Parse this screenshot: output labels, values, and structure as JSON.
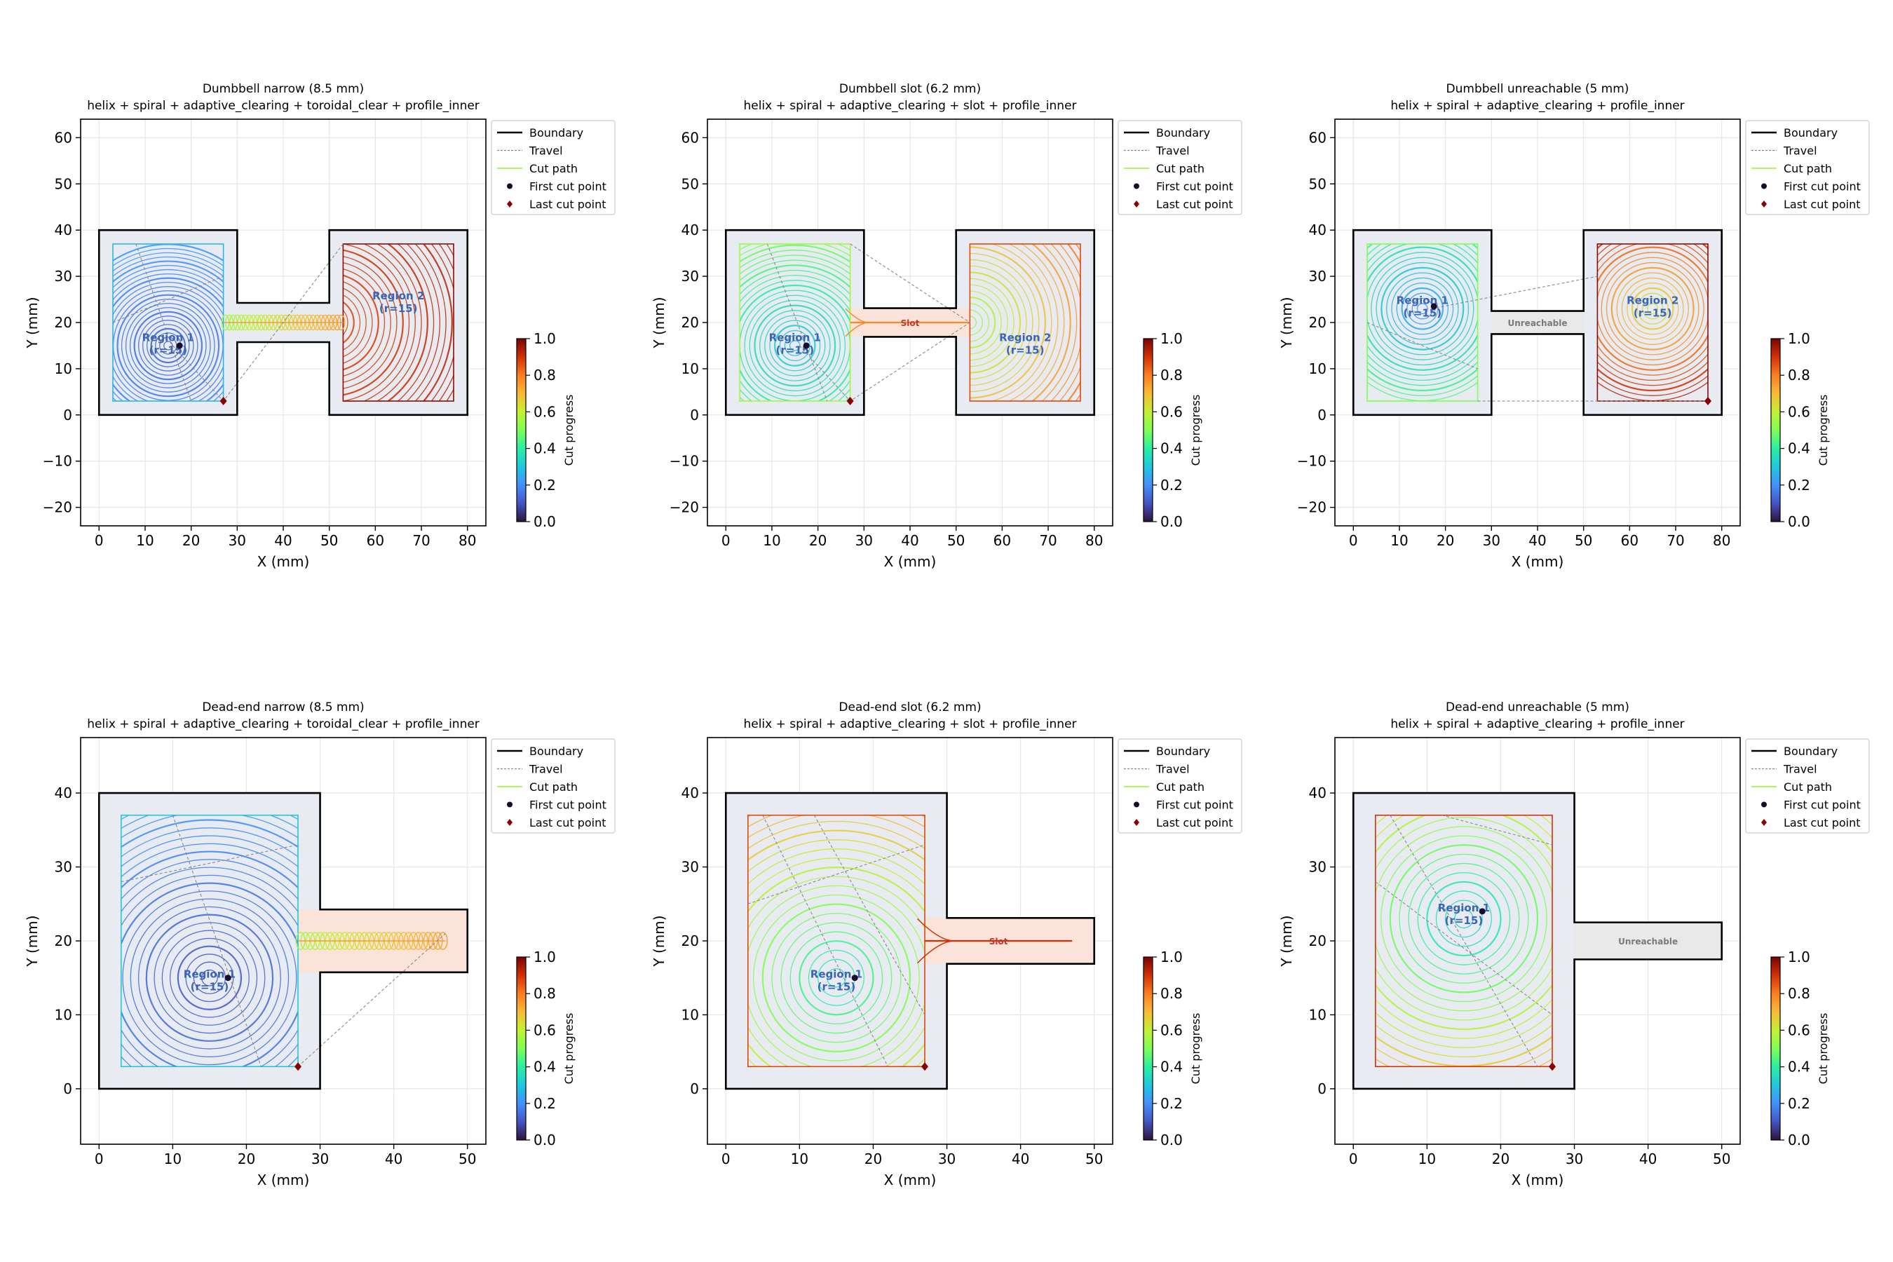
{
  "figure": {
    "colorbar_label": "Cut progress",
    "colormap": "turbo"
  },
  "legend": [
    "Boundary",
    "Travel",
    "Cut path",
    "First cut point",
    "Last cut point"
  ],
  "colors": {
    "boundary": "#000000",
    "travel": "#888888",
    "region_fill": "#e8ecf2",
    "region_label": "#3a64b8",
    "first_point": "#1a0b2e",
    "last_point": "#8b0000",
    "slot_fill": "#fbe3da",
    "unreachable_fill": "#e9e9e9",
    "unreachable_label": "#7a7a7a"
  },
  "chart_data": [
    {
      "type": "line",
      "title": "Dumbbell narrow (8.5 mm)",
      "subtitle": "helix + spiral + adaptive_clearing + toroidal_clear + profile_inner",
      "xlabel": "X (mm)",
      "ylabel": "Y (mm)",
      "xlim": [
        -4,
        84
      ],
      "ylim": [
        -24,
        64
      ],
      "xticks": [
        0,
        10,
        20,
        30,
        40,
        50,
        60,
        70,
        80
      ],
      "yticks": [
        -20,
        -10,
        0,
        10,
        20,
        30,
        40,
        50,
        60
      ],
      "grid": true,
      "legend_position": "outside-right",
      "boundary": [
        [
          0,
          0
        ],
        [
          30,
          0
        ],
        [
          30,
          15.75
        ],
        [
          50,
          15.75
        ],
        [
          50,
          0
        ],
        [
          80,
          0
        ],
        [
          80,
          40
        ],
        [
          50,
          40
        ],
        [
          50,
          24.25
        ],
        [
          30,
          24.25
        ],
        [
          30,
          40
        ],
        [
          0,
          40
        ]
      ],
      "regions": [
        {
          "label": "Region 1",
          "sublabel": "(r=15)",
          "x0": 3,
          "y0": 3,
          "x1": 27,
          "y1": 37,
          "cx": 15,
          "cy": 15,
          "rmax": 22,
          "n": 24,
          "p0": 0.12,
          "p1": 0.22,
          "label_at": [
            15,
            16
          ]
        },
        {
          "label": "Region 2",
          "sublabel": "(r=15)",
          "x0": 53,
          "y0": 3,
          "x1": 77,
          "y1": 37,
          "cx": 50,
          "cy": 20,
          "rmax": 32,
          "n": 24,
          "p0": 0.85,
          "p1": 0.93,
          "label_at": [
            65,
            25
          ]
        }
      ],
      "corridor": {
        "kind": "narrow",
        "x0": 27,
        "x1": 53,
        "y": 20,
        "h": 3.2,
        "p": 0.65
      },
      "travel": [
        [
          [
            16,
            15
          ],
          [
            27,
            3
          ],
          [
            53,
            37
          ]
        ],
        [
          [
            8,
            37
          ],
          [
            20,
            3
          ]
        ],
        [
          [
            3,
            20
          ],
          [
            27,
            30
          ]
        ]
      ],
      "first_point": [
        17.5,
        15
      ],
      "last_point": [
        27,
        3
      ]
    },
    {
      "type": "line",
      "title": "Dumbbell slot (6.2 mm)",
      "subtitle": "helix + spiral + adaptive_clearing + slot + profile_inner",
      "xlabel": "X (mm)",
      "ylabel": "Y (mm)",
      "xlim": [
        -4,
        84
      ],
      "ylim": [
        -24,
        64
      ],
      "xticks": [
        0,
        10,
        20,
        30,
        40,
        50,
        60,
        70,
        80
      ],
      "yticks": [
        -20,
        -10,
        0,
        10,
        20,
        30,
        40,
        50,
        60
      ],
      "grid": true,
      "legend_position": "outside-right",
      "boundary": [
        [
          0,
          0
        ],
        [
          30,
          0
        ],
        [
          30,
          16.9
        ],
        [
          50,
          16.9
        ],
        [
          50,
          0
        ],
        [
          80,
          0
        ],
        [
          80,
          40
        ],
        [
          50,
          40
        ],
        [
          50,
          23.1
        ],
        [
          30,
          23.1
        ],
        [
          30,
          40
        ],
        [
          0,
          40
        ]
      ],
      "regions": [
        {
          "label": "Region 1",
          "sublabel": "(r=15)",
          "x0": 3,
          "y0": 3,
          "x1": 27,
          "y1": 37,
          "cx": 15,
          "cy": 15,
          "rmax": 24,
          "n": 22,
          "p0": 0.28,
          "p1": 0.5,
          "label_at": [
            15,
            16
          ]
        },
        {
          "label": "Region 2",
          "sublabel": "(r=15)",
          "x0": 53,
          "y0": 3,
          "x1": 77,
          "y1": 37,
          "cx": 53,
          "cy": 20,
          "rmax": 30,
          "n": 22,
          "p0": 0.52,
          "p1": 0.82,
          "label_at": [
            65,
            16
          ]
        }
      ],
      "corridor": {
        "kind": "slot",
        "label": "Slot",
        "x0": 27,
        "x1": 53,
        "y": 20,
        "h": 6.2,
        "p": 0.78
      },
      "travel": [
        [
          [
            16,
            15
          ],
          [
            27,
            3
          ],
          [
            53,
            20
          ]
        ],
        [
          [
            27,
            37
          ],
          [
            53,
            20
          ]
        ],
        [
          [
            9,
            37
          ],
          [
            22,
            3
          ]
        ]
      ],
      "first_point": [
        17.5,
        15
      ],
      "last_point": [
        27,
        3
      ]
    },
    {
      "type": "line",
      "title": "Dumbbell unreachable (5 mm)",
      "subtitle": "helix + spiral + adaptive_clearing + profile_inner",
      "xlabel": "X (mm)",
      "ylabel": "Y (mm)",
      "xlim": [
        -4,
        84
      ],
      "ylim": [
        -24,
        64
      ],
      "xticks": [
        0,
        10,
        20,
        30,
        40,
        50,
        60,
        70,
        80
      ],
      "yticks": [
        -20,
        -10,
        0,
        10,
        20,
        30,
        40,
        50,
        60
      ],
      "grid": true,
      "legend_position": "outside-right",
      "boundary": [
        [
          0,
          0
        ],
        [
          30,
          0
        ],
        [
          30,
          17.5
        ],
        [
          50,
          17.5
        ],
        [
          50,
          0
        ],
        [
          80,
          0
        ],
        [
          80,
          40
        ],
        [
          50,
          40
        ],
        [
          50,
          22.5
        ],
        [
          30,
          22.5
        ],
        [
          30,
          40
        ],
        [
          0,
          40
        ]
      ],
      "regions": [
        {
          "label": "Region 1",
          "sublabel": "(r=15)",
          "x0": 3,
          "y0": 3,
          "x1": 27,
          "y1": 37,
          "cx": 15,
          "cy": 23,
          "rmax": 20,
          "n": 18,
          "p0": 0.2,
          "p1": 0.45,
          "label_at": [
            15,
            24
          ]
        },
        {
          "label": "Region 2",
          "sublabel": "(r=15)",
          "x0": 53,
          "y0": 3,
          "x1": 77,
          "y1": 37,
          "cx": 65,
          "cy": 23,
          "rmax": 20,
          "n": 18,
          "p0": 0.6,
          "p1": 0.93,
          "label_at": [
            65,
            24
          ]
        }
      ],
      "corridor": {
        "kind": "unreachable",
        "label": "Unreachable",
        "x0": 30,
        "x1": 50,
        "y": 20,
        "h": 5
      },
      "travel": [
        [
          [
            27,
            3
          ],
          [
            77,
            3
          ]
        ],
        [
          [
            17,
            23
          ],
          [
            53,
            30
          ]
        ],
        [
          [
            3,
            20
          ],
          [
            27,
            10
          ]
        ]
      ],
      "first_point": [
        17.5,
        23.5
      ],
      "last_point": [
        77,
        3
      ]
    },
    {
      "type": "line",
      "title": "Dead-end narrow (8.5 mm)",
      "subtitle": "helix + spiral + adaptive_clearing + toroidal_clear + profile_inner",
      "xlabel": "X (mm)",
      "ylabel": "Y (mm)",
      "xlim": [
        -2.5,
        52.5
      ],
      "ylim": [
        -7.5,
        47.5
      ],
      "xticks": [
        0,
        10,
        20,
        30,
        40,
        50
      ],
      "yticks": [
        0,
        10,
        20,
        30,
        40
      ],
      "grid": true,
      "legend_position": "outside-right",
      "boundary": [
        [
          0,
          0
        ],
        [
          30,
          0
        ],
        [
          30,
          15.75
        ],
        [
          50,
          15.75
        ],
        [
          50,
          24.25
        ],
        [
          30,
          24.25
        ],
        [
          30,
          40
        ],
        [
          0,
          40
        ]
      ],
      "regions": [
        {
          "label": "Region 1",
          "sublabel": "(r=15)",
          "x0": 3,
          "y0": 3,
          "x1": 27,
          "y1": 37,
          "cx": 15,
          "cy": 15,
          "rmax": 30,
          "n": 28,
          "p0": 0.1,
          "p1": 0.25,
          "label_at": [
            15,
            15
          ]
        }
      ],
      "corridor": {
        "kind": "narrow",
        "x0": 27,
        "x1": 47,
        "y": 20,
        "h": 2.3,
        "p": 0.65,
        "dead_end": true
      },
      "travel": [
        [
          [
            27,
            3
          ],
          [
            47,
            21
          ]
        ],
        [
          [
            3,
            28
          ],
          [
            27,
            33
          ]
        ],
        [
          [
            10,
            37
          ],
          [
            22,
            3
          ]
        ]
      ],
      "first_point": [
        17.5,
        15
      ],
      "last_point": [
        27,
        3
      ]
    },
    {
      "type": "line",
      "title": "Dead-end slot (6.2 mm)",
      "subtitle": "helix + spiral + adaptive_clearing + slot + profile_inner",
      "xlabel": "X (mm)",
      "ylabel": "Y (mm)",
      "xlim": [
        -2.5,
        52.5
      ],
      "ylim": [
        -7.5,
        47.5
      ],
      "xticks": [
        0,
        10,
        20,
        30,
        40,
        50
      ],
      "yticks": [
        0,
        10,
        20,
        30,
        40
      ],
      "grid": true,
      "legend_position": "outside-right",
      "boundary": [
        [
          0,
          0
        ],
        [
          30,
          0
        ],
        [
          30,
          16.9
        ],
        [
          50,
          16.9
        ],
        [
          50,
          23.1
        ],
        [
          30,
          23.1
        ],
        [
          30,
          40
        ],
        [
          0,
          40
        ]
      ],
      "regions": [
        {
          "label": "Region 1",
          "sublabel": "(r=15)",
          "x0": 3,
          "y0": 3,
          "x1": 27,
          "y1": 37,
          "cx": 15,
          "cy": 15,
          "rmax": 30,
          "n": 24,
          "p0": 0.35,
          "p1": 0.82,
          "label_at": [
            15,
            15
          ]
        }
      ],
      "corridor": {
        "kind": "slot",
        "label": "Slot",
        "x0": 27,
        "x1": 47,
        "y": 20,
        "h": 6.2,
        "p": 0.9,
        "dead_end": true
      },
      "travel": [
        [
          [
            5,
            37
          ],
          [
            22,
            3
          ]
        ],
        [
          [
            3,
            25
          ],
          [
            27,
            33
          ]
        ],
        [
          [
            12,
            37
          ],
          [
            27,
            10
          ]
        ]
      ],
      "first_point": [
        17.5,
        15
      ],
      "last_point": [
        27,
        3
      ]
    },
    {
      "type": "line",
      "title": "Dead-end unreachable (5 mm)",
      "subtitle": "helix + spiral + adaptive_clearing + profile_inner",
      "xlabel": "X (mm)",
      "ylabel": "Y (mm)",
      "xlim": [
        -2.5,
        52.5
      ],
      "ylim": [
        -7.5,
        47.5
      ],
      "xticks": [
        0,
        10,
        20,
        30,
        40,
        50
      ],
      "yticks": [
        0,
        10,
        20,
        30,
        40
      ],
      "grid": true,
      "legend_position": "outside-right",
      "boundary": [
        [
          0,
          0
        ],
        [
          30,
          0
        ],
        [
          30,
          17.5
        ],
        [
          50,
          17.5
        ],
        [
          50,
          22.5
        ],
        [
          30,
          22.5
        ],
        [
          30,
          40
        ],
        [
          0,
          40
        ]
      ],
      "regions": [
        {
          "label": "Region 1",
          "sublabel": "(r=15)",
          "x0": 3,
          "y0": 3,
          "x1": 27,
          "y1": 37,
          "cx": 15,
          "cy": 23,
          "rmax": 30,
          "n": 24,
          "p0": 0.3,
          "p1": 0.85,
          "label_at": [
            15,
            24
          ]
        }
      ],
      "corridor": {
        "kind": "unreachable",
        "label": "Unreachable",
        "x0": 30,
        "x1": 50,
        "y": 20,
        "h": 5
      },
      "travel": [
        [
          [
            5,
            37
          ],
          [
            25,
            3
          ]
        ],
        [
          [
            3,
            28
          ],
          [
            27,
            10
          ]
        ],
        [
          [
            12,
            37
          ],
          [
            27,
            33
          ]
        ]
      ],
      "first_point": [
        17.5,
        24
      ],
      "last_point": [
        27,
        3
      ]
    }
  ]
}
